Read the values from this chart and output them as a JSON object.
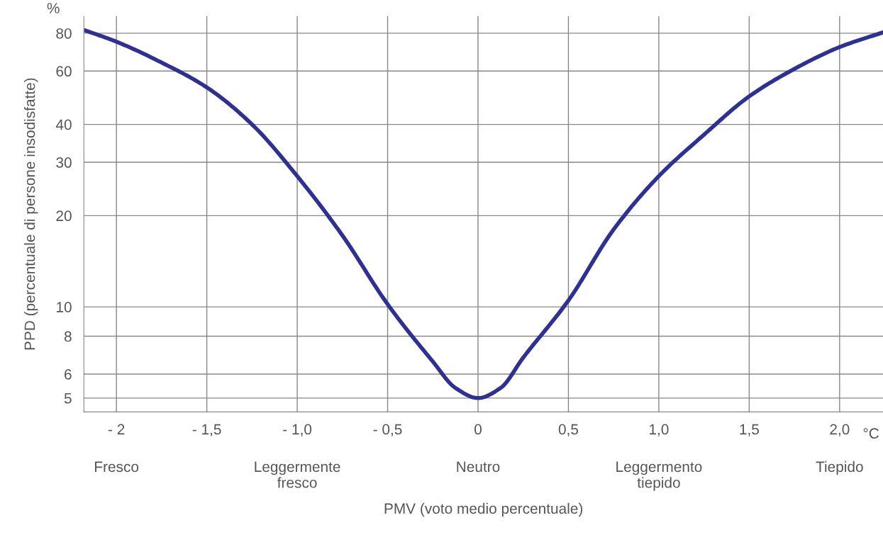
{
  "chart_data": {
    "type": "line",
    "xlabel": "PMV (voto medio percentuale)",
    "ylabel": "PPD (percentuale di persone insodisfatte)",
    "annotations": [
      "%",
      "°C",
      "Fresco",
      "Leggermente\nfresco",
      "Neutro",
      "Leggermento\ntiepido",
      "Tiepido"
    ],
    "x": [
      -2.18,
      -2.0,
      -1.75,
      -1.5,
      -1.25,
      -1.0,
      -0.75,
      -0.5,
      -0.25,
      -0.125,
      0,
      0.125,
      0.25,
      0.5,
      0.75,
      1.0,
      1.25,
      1.5,
      1.75,
      2.0,
      2.24
    ],
    "series": [
      {
        "color": "#2e3192",
        "values": [
          82,
          75,
          64,
          53,
          40,
          27,
          17.2,
          10.2,
          6.6,
          5.4,
          5,
          5.4,
          6.8,
          10.5,
          18,
          27,
          37,
          49.5,
          61,
          72,
          80.5
        ]
      }
    ],
    "log": true,
    "xlim": [
      -2.18,
      2.24
    ],
    "ylim": [
      4.5,
      91
    ],
    "xticks": [
      {
        "value": -2,
        "label": "- 2"
      },
      {
        "value": -1.5,
        "label": "- 1,5"
      },
      {
        "value": -1,
        "label": "- 1,0"
      },
      {
        "value": -0.5,
        "label": "- 0,5"
      },
      0,
      {
        "value": 0.5,
        "label": "0,5"
      },
      {
        "value": 1,
        "label": "1,0"
      },
      {
        "value": 1.5,
        "label": "1,5"
      },
      {
        "value": 2,
        "label": "2,0"
      }
    ],
    "yticks": [
      5,
      6,
      8,
      10,
      20,
      30,
      40,
      60,
      80
    ],
    "grid": true,
    "marker": "none",
    "line_style": "solid"
  }
}
